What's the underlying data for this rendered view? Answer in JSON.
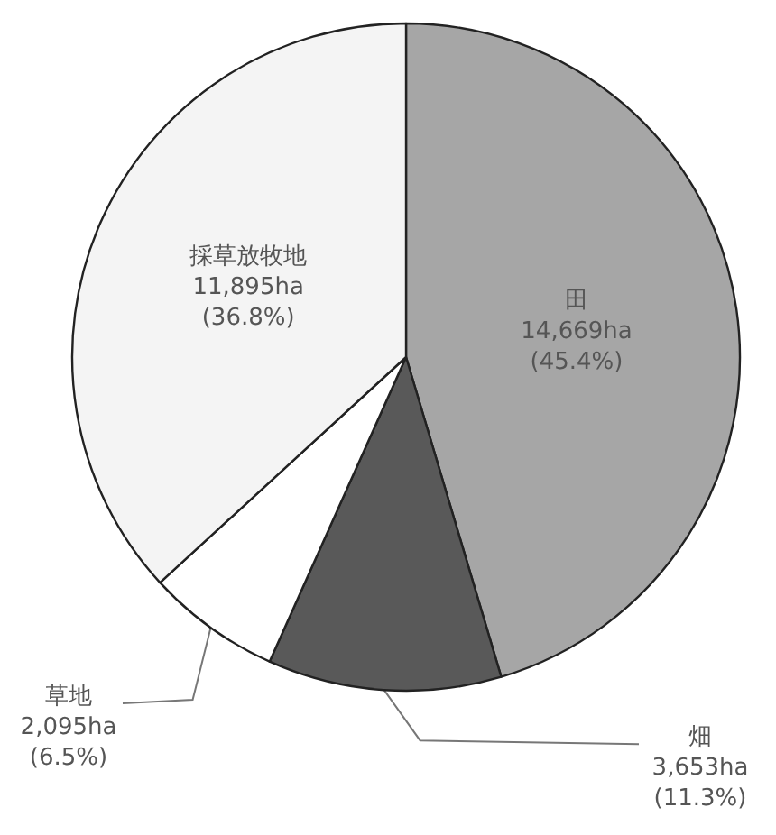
{
  "chart_data": {
    "type": "pie",
    "categories": [
      "田",
      "畑",
      "草地",
      "採草放牧地"
    ],
    "values": [
      14669,
      3653,
      2095,
      11895
    ],
    "value_labels": [
      "14,669ha\n(45.4%)",
      "3,653ha\n(11.3%)",
      "2,095ha\n(6.5%)",
      "11,895ha\n(36.8%)"
    ],
    "colors": [
      "#a6a6a6",
      "#595959",
      "#ffffff",
      "#f4f4f4"
    ],
    "legend": false
  }
}
